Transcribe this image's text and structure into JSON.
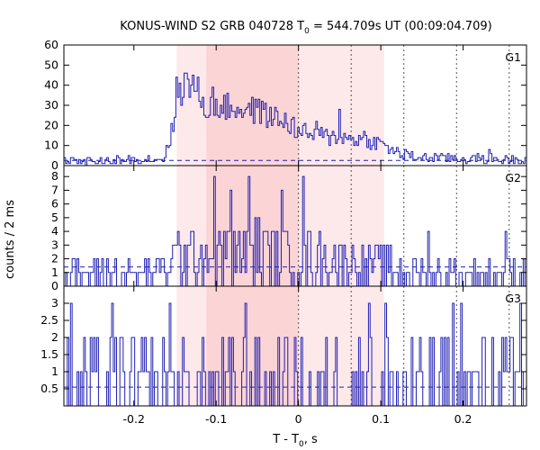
{
  "chart_data": {
    "type": "line",
    "title_prefix": "KONUS-WIND S2 GRB 040728 T",
    "title_sub": "0",
    "title_suffix": " = 544.709s UT (00:09:04.709)",
    "ylabel": "counts / 2 ms",
    "xlabel_prefix": "T - T",
    "xlabel_sub": "0",
    "xlabel_suffix": ", s",
    "xlim": [
      -0.285,
      0.277
    ],
    "xticks": [
      -0.2,
      -0.1,
      0,
      0.1,
      0.2
    ],
    "xtick_labels": [
      "-0.2",
      "-0.1",
      "0",
      "0.1",
      "0.2"
    ],
    "bin_width": 0.002,
    "shaded_regions": [
      {
        "name": "outer-interval",
        "from": -0.148,
        "to": 0.104,
        "color": "#fde9ea"
      },
      {
        "name": "inner-interval",
        "from": -0.112,
        "to": 0.0,
        "color": "#fbd4d6"
      }
    ],
    "vertical_dotted_lines": [
      0.0,
      0.064,
      0.128,
      0.192,
      0.256
    ],
    "colors": {
      "series": "#1f1fb4",
      "background_line": "#1f1fb4",
      "frame": "#000000",
      "dotted": "#555555"
    },
    "panels": [
      {
        "label": "G1",
        "ylim": [
          0,
          60
        ],
        "yticks": [
          0,
          10,
          20,
          30,
          40,
          50,
          60
        ],
        "ytick_labels": [
          "0",
          "10",
          "20",
          "30",
          "40",
          "50",
          "60"
        ],
        "background": 2.6,
        "noise": {
          "base": 3,
          "amp": 3,
          "jitter": 4
        },
        "profile": [
          [
            -0.28,
            3
          ],
          [
            -0.165,
            3
          ],
          [
            -0.158,
            10
          ],
          [
            -0.152,
            20
          ],
          [
            -0.148,
            33
          ],
          [
            -0.144,
            38
          ],
          [
            -0.135,
            40
          ],
          [
            -0.125,
            38
          ],
          [
            -0.118,
            34
          ],
          [
            -0.114,
            27
          ],
          [
            -0.108,
            31
          ],
          [
            -0.09,
            29
          ],
          [
            -0.06,
            28
          ],
          [
            -0.03,
            24
          ],
          [
            -0.01,
            21
          ],
          [
            0.0,
            17
          ],
          [
            0.02,
            15
          ],
          [
            0.05,
            14
          ],
          [
            0.08,
            13
          ],
          [
            0.1,
            11
          ],
          [
            0.112,
            8
          ],
          [
            0.13,
            5
          ],
          [
            0.15,
            4
          ],
          [
            0.277,
            3
          ]
        ],
        "spikes": [
          [
            -0.148,
            44
          ],
          [
            -0.138,
            46
          ],
          [
            -0.128,
            45
          ],
          [
            -0.106,
            39
          ],
          [
            -0.048,
            33
          ],
          [
            0.05,
            28
          ],
          [
            0.02,
            22
          ],
          [
            0.078,
            17
          ],
          [
            0.23,
            8
          ]
        ]
      },
      {
        "label": "G2",
        "ylim": [
          0,
          8.8
        ],
        "yticks": [
          0,
          1,
          2,
          3,
          4,
          5,
          6,
          7,
          8
        ],
        "ytick_labels": [
          "0",
          "1",
          "2",
          "3",
          "4",
          "5",
          "6",
          "7",
          "8"
        ],
        "background": 1.4,
        "noise": {
          "base": 1,
          "amp": 3,
          "jitter": 0
        },
        "profile": [
          [
            -0.28,
            1.4
          ],
          [
            -0.16,
            1.6
          ],
          [
            -0.148,
            2.8
          ],
          [
            -0.05,
            3.1
          ],
          [
            0.0,
            2.8
          ],
          [
            0.06,
            2.3
          ],
          [
            0.105,
            1.9
          ],
          [
            0.14,
            1.5
          ],
          [
            0.277,
            1.4
          ]
        ],
        "spikes": [
          [
            -0.104,
            8
          ],
          [
            -0.06,
            8
          ],
          [
            0.004,
            8
          ],
          [
            -0.082,
            7
          ],
          [
            -0.02,
            7
          ],
          [
            0.158,
            4
          ],
          [
            0.252,
            4
          ]
        ]
      },
      {
        "label": "G3",
        "ylim": [
          0,
          3.5
        ],
        "yticks": [
          0.5,
          1,
          1.5,
          2,
          2.5,
          3
        ],
        "ytick_labels": [
          "0.5",
          "1",
          "1.5",
          "2",
          "2.5",
          "3"
        ],
        "background": 0.55,
        "noise": {
          "base": 0,
          "amp": 2,
          "jitter": 0
        },
        "profile": [
          [
            -0.28,
            0.55
          ],
          [
            0.277,
            0.55
          ]
        ],
        "spikes": [
          [
            -0.276,
            3
          ],
          [
            -0.226,
            3
          ],
          [
            -0.156,
            3
          ],
          [
            -0.064,
            3
          ],
          [
            0.084,
            3
          ],
          [
            0.106,
            3
          ],
          [
            0.188,
            3
          ],
          [
            0.196,
            3
          ],
          [
            0.236,
            2
          ],
          [
            0.27,
            3
          ]
        ]
      }
    ]
  }
}
